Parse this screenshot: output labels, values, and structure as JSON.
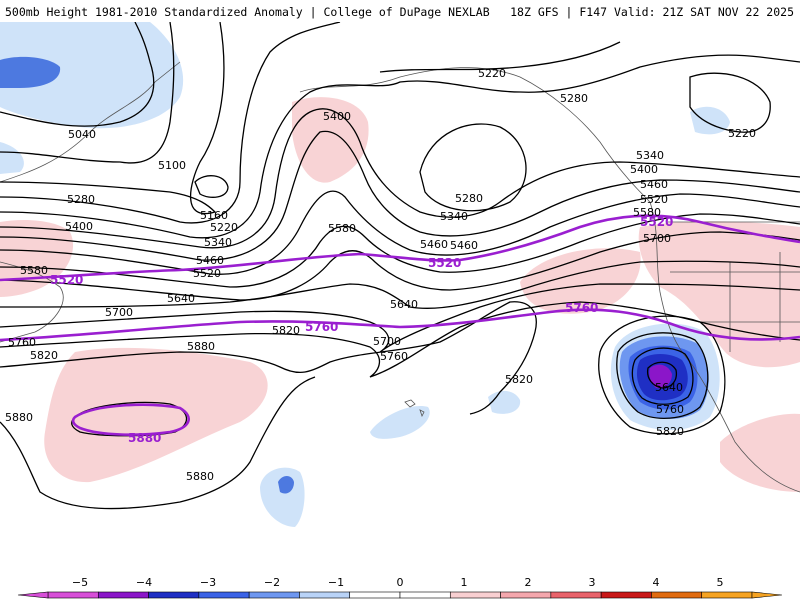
{
  "header": {
    "title": "500mb Height 1981-2010 Standardized Anomaly | College of DuPage NEXLAB",
    "run_info": "18Z GFS | F147 Valid: 21Z SAT NOV 22 2025"
  },
  "contours": {
    "c5220a": "5220",
    "c5280a": "5280",
    "c5220b": "5220",
    "c5040": "5040",
    "c5100": "5100",
    "c5400a": "5400",
    "c5340a": "5340",
    "c5400b": "5400",
    "c5460a": "5460",
    "c5520a": "5520",
    "c5580a": "5580",
    "c5280b": "5280",
    "c5160": "5160",
    "c5220c": "5220",
    "c5340b": "5340",
    "c5460b": "5460",
    "c5580b": "5580",
    "c5280c": "5280",
    "c5400c": "5400",
    "c5460c": "5460",
    "c5520b": "5520",
    "c5580c": "5580",
    "c5640a": "5640",
    "c5700a": "5700",
    "c5760a": "5760",
    "c5820a": "5820",
    "c5340c": "5340",
    "c5460d": "5460",
    "c5640b": "5640",
    "c5700b": "5700",
    "c5760b": "5760",
    "c5820b": "5820",
    "c5880a": "5880",
    "c5880b": "5880",
    "c5880c": "5880",
    "c5820c": "5820",
    "c5640c": "5640",
    "c5760c": "5760",
    "c5820d": "5820",
    "c5700c": "5700"
  },
  "climo_labels": {
    "p5520a": "5520",
    "p5520b": "5520",
    "p5520c": "5520",
    "p5760a": "5760",
    "p5760b": "5760",
    "p5880": "5880"
  },
  "colorbar": {
    "ticks": [
      "−5",
      "−4",
      "−3",
      "−2",
      "−1",
      "0",
      "1",
      "2",
      "3",
      "4",
      "5"
    ],
    "colors": [
      "#d74fd8",
      "#8b16c9",
      "#1f2fc4",
      "#3b63e6",
      "#6e97f0",
      "#b9d3f7",
      "#ffffff",
      "#ffffff",
      "#f8cfd1",
      "#f4a7ad",
      "#e9636b",
      "#c91818",
      "#e06b10",
      "#f5a323"
    ]
  }
}
